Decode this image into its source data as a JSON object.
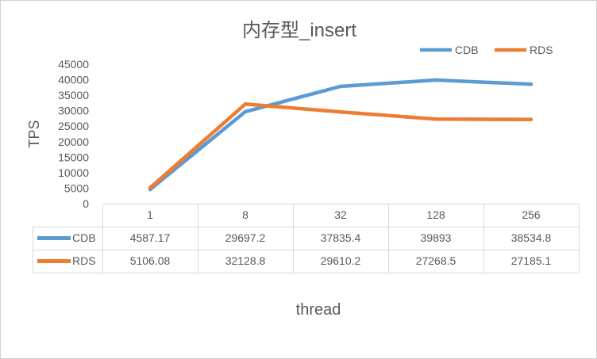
{
  "chart_data": {
    "type": "line",
    "title": "内存型_insert",
    "xlabel": "thread",
    "ylabel": "TPS",
    "categories": [
      "1",
      "8",
      "32",
      "128",
      "256"
    ],
    "ylim": [
      0,
      45000
    ],
    "yticks": [
      "0",
      "5000",
      "10000",
      "15000",
      "20000",
      "25000",
      "30000",
      "35000",
      "40000",
      "45000"
    ],
    "grid": false,
    "legend_position": "top-right",
    "data_table": true,
    "series": [
      {
        "name": "CDB",
        "color": "#5B9BD5",
        "values": [
          4587.17,
          29697.2,
          37835.4,
          39893,
          38534.8
        ],
        "labels": [
          "4587.17",
          "29697.2",
          "37835.4",
          "39893",
          "38534.8"
        ]
      },
      {
        "name": "RDS",
        "color": "#ED7D31",
        "values": [
          5106.08,
          32128.8,
          29610.2,
          27268.5,
          27185.1
        ],
        "labels": [
          "5106.08",
          "32128.8",
          "29610.2",
          "27268.5",
          "27185.1"
        ]
      }
    ]
  }
}
